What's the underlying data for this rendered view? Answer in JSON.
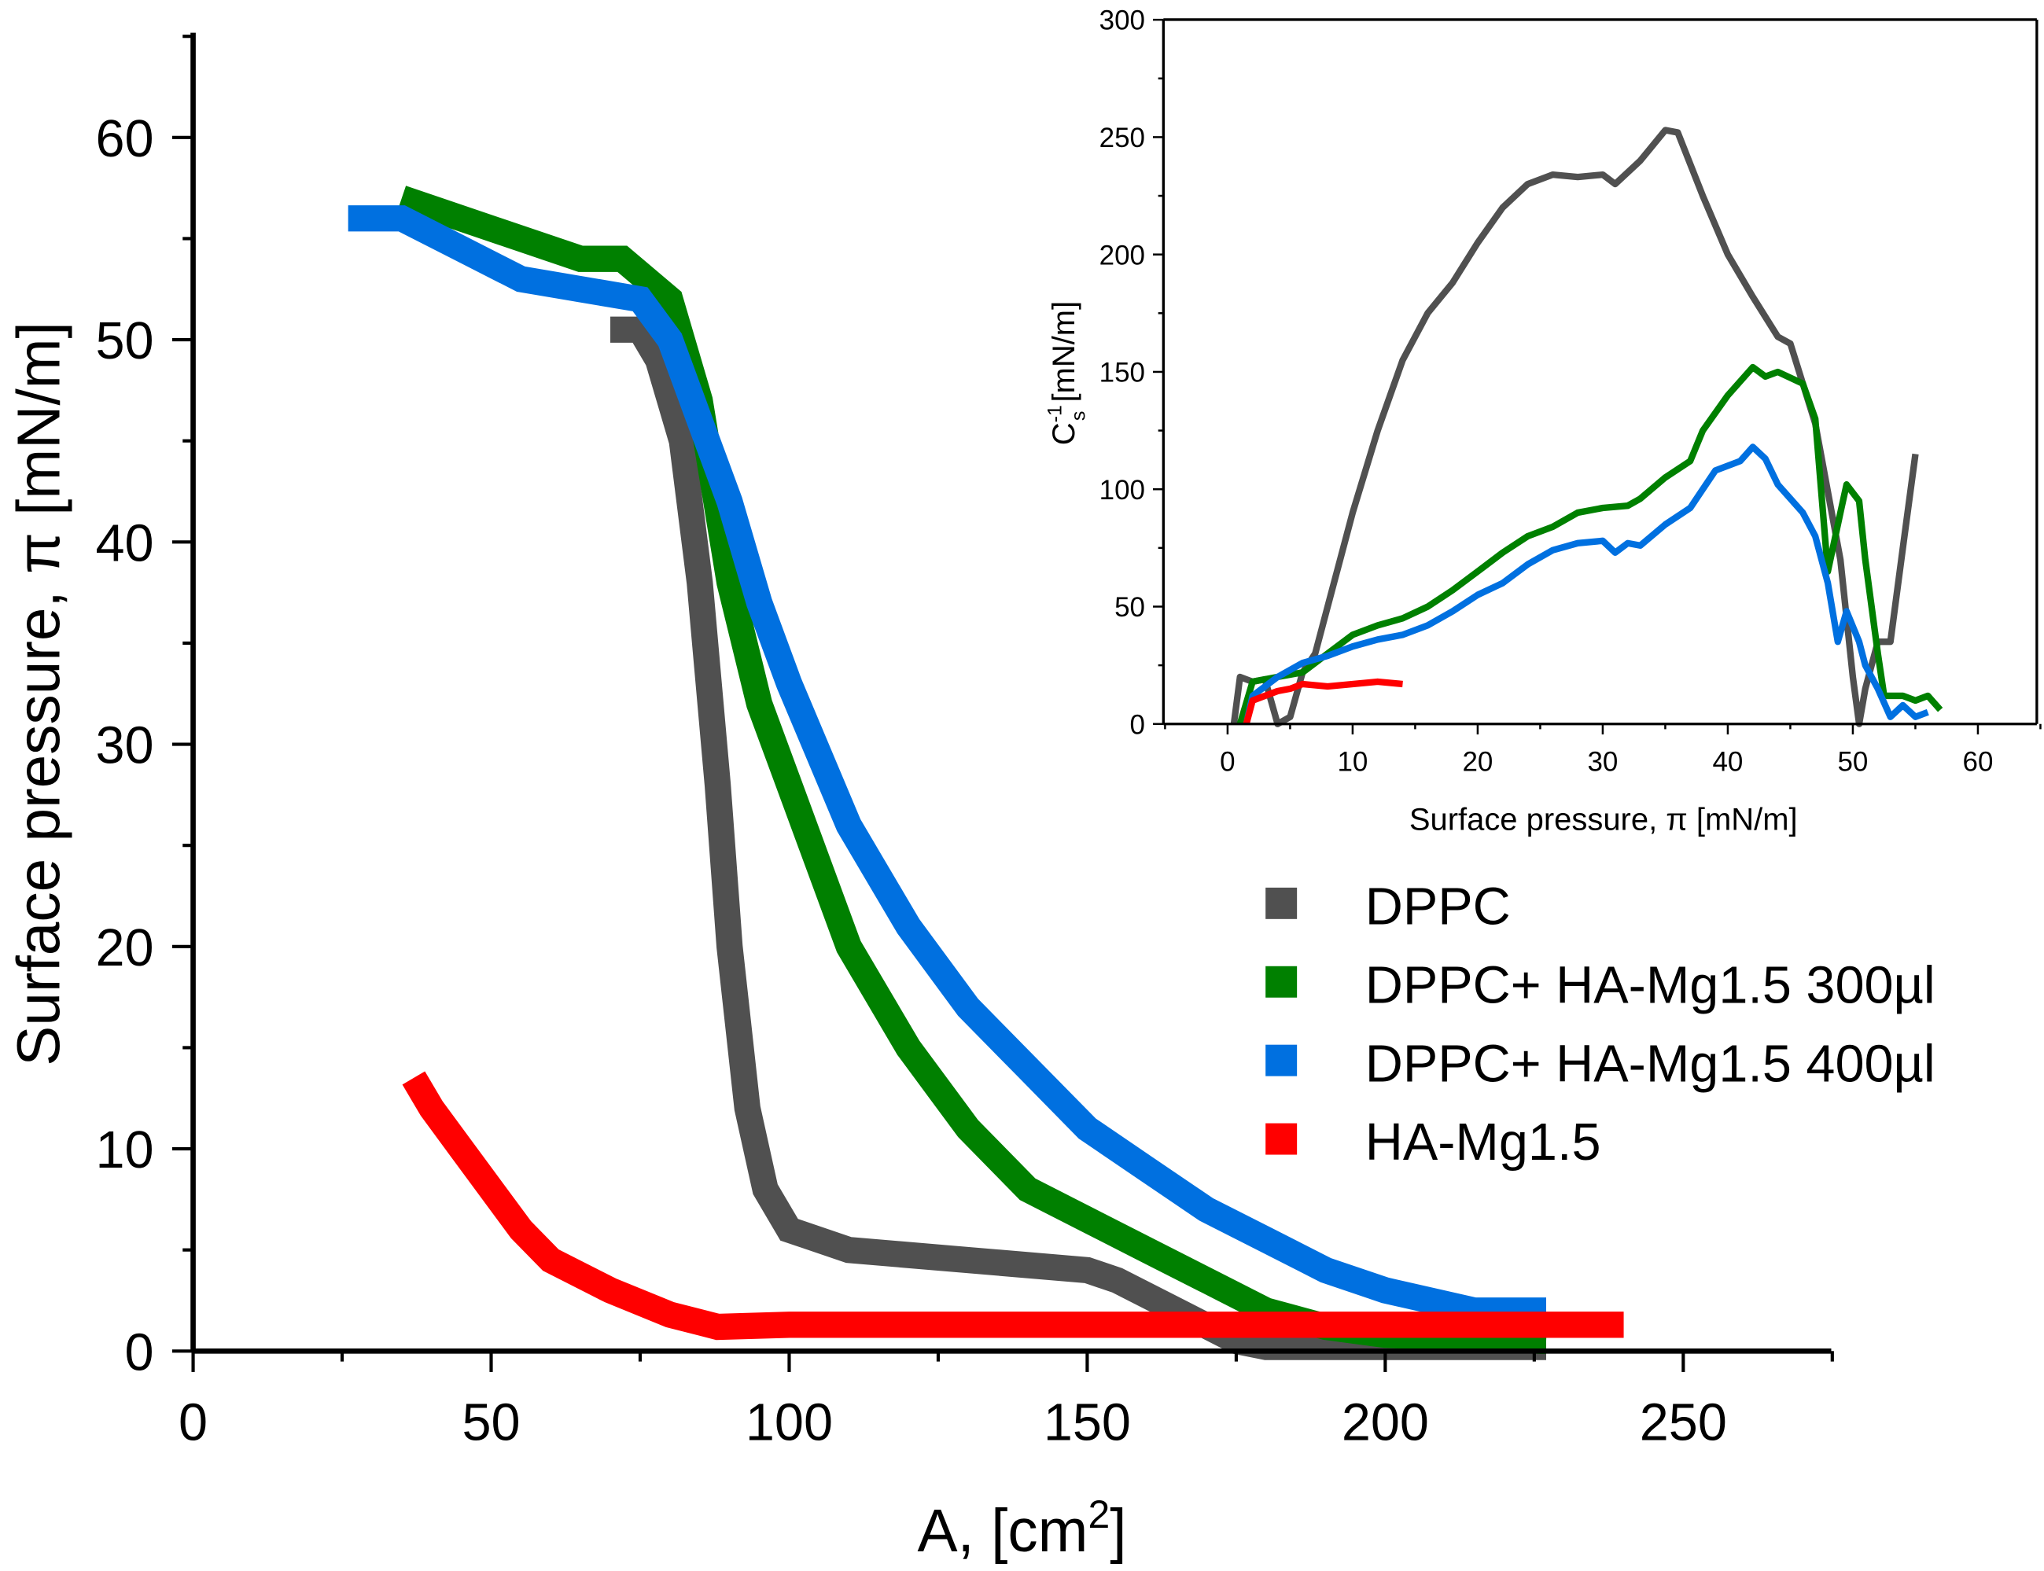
{
  "chart_data": [
    {
      "type": "line",
      "xlabel": "A, [cm²]",
      "xlabel_main": "A, [cm",
      "xlabel_sup": "2",
      "xlabel_end": "]",
      "ylabel": "Surface pressure, π [mN/m]",
      "xlim": [
        0,
        275
      ],
      "ylim": [
        0,
        65
      ],
      "xticks": [
        "0",
        "50",
        "100",
        "150",
        "200",
        "250"
      ],
      "yticks": [
        "0",
        "10",
        "20",
        "30",
        "40",
        "50",
        "60"
      ],
      "legend_position": "right",
      "series": [
        {
          "name": "DPPC",
          "color": "#505050",
          "points": [
            [
              70,
              50.5
            ],
            [
              75,
              50.5
            ],
            [
              78,
              49
            ],
            [
              82,
              45
            ],
            [
              85,
              38
            ],
            [
              88,
              28
            ],
            [
              90,
              20
            ],
            [
              93,
              12
            ],
            [
              96,
              8
            ],
            [
              100,
              6
            ],
            [
              110,
              5
            ],
            [
              130,
              4.5
            ],
            [
              150,
              4
            ],
            [
              155,
              3.5
            ],
            [
              165,
              2
            ],
            [
              175,
              0.5
            ],
            [
              180,
              0.2
            ],
            [
              227,
              0.2
            ]
          ]
        },
        {
          "name": "DPPC+ HA-Mg1.5 300µl",
          "color": "#008000",
          "points": [
            [
              35,
              57
            ],
            [
              45,
              56
            ],
            [
              55,
              55
            ],
            [
              65,
              54
            ],
            [
              72,
              54
            ],
            [
              80,
              52
            ],
            [
              85,
              47
            ],
            [
              90,
              38
            ],
            [
              95,
              32
            ],
            [
              100,
              28
            ],
            [
              110,
              20
            ],
            [
              120,
              15
            ],
            [
              130,
              11
            ],
            [
              140,
              8
            ],
            [
              150,
              6.5
            ],
            [
              160,
              5
            ],
            [
              170,
              3.5
            ],
            [
              180,
              2
            ],
            [
              190,
              1.2
            ],
            [
              200,
              0.8
            ],
            [
              227,
              0.5
            ]
          ]
        },
        {
          "name": "DPPC+ HA-Mg1.5 400µl",
          "color": "#0070E0",
          "points": [
            [
              26,
              56
            ],
            [
              35,
              56
            ],
            [
              45,
              54.5
            ],
            [
              55,
              53
            ],
            [
              65,
              52.5
            ],
            [
              75,
              52
            ],
            [
              80,
              50
            ],
            [
              85,
              46
            ],
            [
              90,
              42
            ],
            [
              95,
              37
            ],
            [
              100,
              33
            ],
            [
              110,
              26
            ],
            [
              120,
              21
            ],
            [
              130,
              17
            ],
            [
              140,
              14
            ],
            [
              150,
              11
            ],
            [
              160,
              9
            ],
            [
              170,
              7
            ],
            [
              180,
              5.5
            ],
            [
              190,
              4
            ],
            [
              200,
              3
            ],
            [
              215,
              2
            ],
            [
              227,
              2
            ]
          ]
        },
        {
          "name": "HA-Mg1.5",
          "color": "#FF0000",
          "points": [
            [
              37,
              13.5
            ],
            [
              40,
              12
            ],
            [
              45,
              10
            ],
            [
              50,
              8
            ],
            [
              55,
              6
            ],
            [
              60,
              4.5
            ],
            [
              70,
              3
            ],
            [
              80,
              1.8
            ],
            [
              88,
              1.2
            ],
            [
              100,
              1.3
            ],
            [
              240,
              1.3
            ]
          ]
        }
      ]
    },
    {
      "type": "line",
      "xlabel": "Surface pressure, π [mN/m]",
      "ylabel": "Cs⁻¹ [mN/m]",
      "ylabel_main": "C",
      "ylabel_sup": "-1",
      "ylabel_sub": "s",
      "ylabel_end": " [mN/m]",
      "xlim": [
        -5,
        65
      ],
      "ylim": [
        0,
        300
      ],
      "xticks": [
        "0",
        "10",
        "20",
        "30",
        "40",
        "50",
        "60"
      ],
      "yticks": [
        "0",
        "50",
        "100",
        "150",
        "200",
        "250",
        "300"
      ],
      "series": [
        {
          "name": "DPPC",
          "color": "#505050",
          "points": [
            [
              0.5,
              0
            ],
            [
              1,
              20
            ],
            [
              2,
              18
            ],
            [
              3,
              19
            ],
            [
              4,
              0
            ],
            [
              5,
              3
            ],
            [
              6,
              22
            ],
            [
              7,
              30
            ],
            [
              8,
              50
            ],
            [
              10,
              90
            ],
            [
              12,
              125
            ],
            [
              14,
              155
            ],
            [
              16,
              175
            ],
            [
              18,
              188
            ],
            [
              20,
              205
            ],
            [
              22,
              220
            ],
            [
              24,
              230
            ],
            [
              26,
              234
            ],
            [
              28,
              233
            ],
            [
              30,
              234
            ],
            [
              31,
              230
            ],
            [
              33,
              240
            ],
            [
              35,
              253
            ],
            [
              36,
              252
            ],
            [
              38,
              225
            ],
            [
              40,
              200
            ],
            [
              42,
              182
            ],
            [
              44,
              165
            ],
            [
              45,
              162
            ],
            [
              47,
              128
            ],
            [
              49,
              70
            ],
            [
              50,
              20
            ],
            [
              50.5,
              0
            ],
            [
              51,
              15
            ],
            [
              52,
              35
            ],
            [
              53,
              35
            ],
            [
              54,
              75
            ],
            [
              55,
              115
            ]
          ]
        },
        {
          "name": "DPPC+ HA-Mg1.5 300µl",
          "color": "#008000",
          "points": [
            [
              1,
              0
            ],
            [
              2,
              18
            ],
            [
              4,
              20
            ],
            [
              6,
              22
            ],
            [
              8,
              30
            ],
            [
              10,
              38
            ],
            [
              12,
              42
            ],
            [
              14,
              45
            ],
            [
              16,
              50
            ],
            [
              18,
              57
            ],
            [
              20,
              65
            ],
            [
              22,
              73
            ],
            [
              24,
              80
            ],
            [
              26,
              84
            ],
            [
              28,
              90
            ],
            [
              30,
              92
            ],
            [
              32,
              93
            ],
            [
              33,
              96
            ],
            [
              35,
              105
            ],
            [
              37,
              112
            ],
            [
              38,
              125
            ],
            [
              40,
              140
            ],
            [
              42,
              152
            ],
            [
              43,
              148
            ],
            [
              44,
              150
            ],
            [
              46,
              145
            ],
            [
              47,
              130
            ],
            [
              48,
              65
            ],
            [
              49,
              90
            ],
            [
              49.5,
              102
            ],
            [
              50.5,
              95
            ],
            [
              51,
              70
            ],
            [
              52,
              30
            ],
            [
              52.5,
              12
            ],
            [
              54,
              12
            ],
            [
              55,
              10
            ],
            [
              56,
              12
            ],
            [
              57,
              6
            ]
          ]
        },
        {
          "name": "DPPC+ HA-Mg1.5 400µl",
          "color": "#0070E0",
          "points": [
            [
              1.5,
              0
            ],
            [
              2,
              12
            ],
            [
              4,
              20
            ],
            [
              6,
              26
            ],
            [
              8,
              29
            ],
            [
              10,
              33
            ],
            [
              12,
              36
            ],
            [
              14,
              38
            ],
            [
              16,
              42
            ],
            [
              18,
              48
            ],
            [
              20,
              55
            ],
            [
              22,
              60
            ],
            [
              24,
              68
            ],
            [
              26,
              74
            ],
            [
              28,
              77
            ],
            [
              30,
              78
            ],
            [
              31,
              73
            ],
            [
              32,
              77
            ],
            [
              33,
              76
            ],
            [
              35,
              85
            ],
            [
              37,
              92
            ],
            [
              39,
              108
            ],
            [
              41,
              112
            ],
            [
              42,
              118
            ],
            [
              43,
              113
            ],
            [
              44,
              102
            ],
            [
              46,
              90
            ],
            [
              47,
              80
            ],
            [
              48,
              60
            ],
            [
              48.8,
              35
            ],
            [
              49.5,
              48
            ],
            [
              50.5,
              35
            ],
            [
              51,
              25
            ],
            [
              52,
              15
            ],
            [
              53,
              3
            ],
            [
              54,
              8
            ],
            [
              55,
              3
            ],
            [
              56,
              5
            ]
          ]
        },
        {
          "name": "HA-Mg1.5",
          "color": "#FF0000",
          "points": [
            [
              1.5,
              0
            ],
            [
              2,
              10
            ],
            [
              3,
              12
            ],
            [
              4,
              14
            ],
            [
              5,
              15
            ],
            [
              6,
              17
            ],
            [
              8,
              16
            ],
            [
              10,
              17
            ],
            [
              12,
              18
            ],
            [
              14,
              17
            ]
          ]
        }
      ]
    }
  ]
}
